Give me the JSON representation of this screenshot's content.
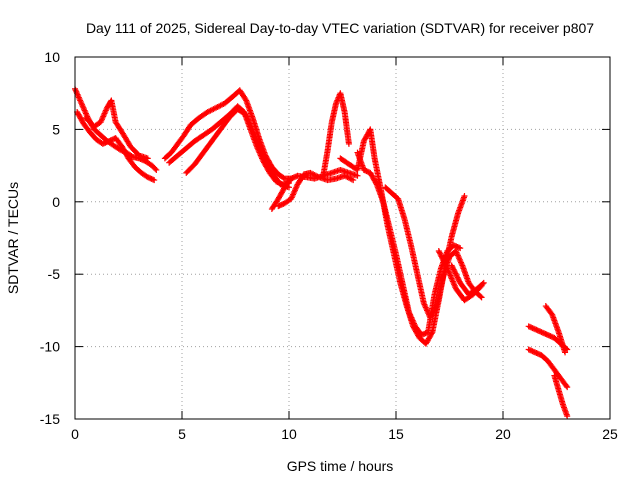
{
  "chart_data": {
    "type": "scatter",
    "title": "Day 111 of 2025, Sidereal Day-to-day VTEC variation (SDTVAR) for receiver p807",
    "xlabel": "GPS time / hours",
    "ylabel": "SDTVAR / TECUs",
    "xlim": [
      0,
      25
    ],
    "ylim": [
      -15,
      10
    ],
    "xticks": [
      0,
      5,
      10,
      15,
      20,
      25
    ],
    "yticks": [
      -15,
      -10,
      -5,
      0,
      5,
      10
    ],
    "xtick_labels": [
      "0",
      "5",
      "10",
      "15",
      "20",
      "25"
    ],
    "ytick_labels": [
      "-15",
      "-10",
      "-5",
      "0",
      "5",
      "10"
    ],
    "grid": true,
    "marker": "plus",
    "color": "#ff0000",
    "series": [
      {
        "x": [
          0.0,
          0.3,
          0.6,
          0.9,
          1.2,
          1.5,
          1.8,
          2.1,
          2.4,
          2.7,
          3.0,
          3.3,
          3.6,
          3.8
        ],
        "y": [
          7.8,
          6.8,
          5.8,
          5.0,
          4.6,
          4.2,
          3.9,
          3.6,
          3.4,
          3.1,
          3.0,
          2.8,
          2.5,
          2.2
        ]
      },
      {
        "x": [
          0.1,
          0.4,
          0.7,
          1.0,
          1.3,
          1.6,
          1.9,
          2.2,
          2.5,
          2.8,
          3.1,
          3.4,
          3.7
        ],
        "y": [
          6.2,
          5.4,
          4.8,
          4.3,
          4.0,
          4.2,
          4.4,
          3.8,
          3.0,
          2.4,
          2.0,
          1.7,
          1.5
        ]
      },
      {
        "x": [
          0.5,
          0.9,
          1.2,
          1.5,
          1.7,
          1.9,
          2.2,
          2.6,
          3.0,
          3.4
        ],
        "y": [
          5.8,
          5.2,
          5.5,
          6.5,
          7.0,
          5.5,
          4.8,
          3.8,
          3.2,
          3.0
        ]
      },
      {
        "x": [
          4.2,
          4.5,
          4.8,
          5.1,
          5.4,
          5.8,
          6.2,
          6.6,
          7.0,
          7.4,
          7.7,
          8.0,
          8.3,
          8.6,
          8.9,
          9.2,
          9.5,
          9.8,
          10.1
        ],
        "y": [
          3.0,
          3.4,
          4.0,
          4.6,
          5.3,
          5.8,
          6.2,
          6.5,
          6.8,
          7.3,
          7.7,
          7.0,
          5.8,
          4.4,
          3.2,
          2.4,
          1.9,
          1.6,
          1.6
        ]
      },
      {
        "x": [
          4.4,
          4.8,
          5.2,
          5.6,
          6.0,
          6.4,
          6.8,
          7.2,
          7.6,
          7.9,
          8.2,
          8.5,
          8.8,
          9.1,
          9.4,
          9.7,
          10.0
        ],
        "y": [
          2.7,
          3.2,
          3.7,
          4.2,
          4.6,
          5.0,
          5.5,
          6.0,
          6.6,
          6.2,
          5.0,
          3.8,
          2.8,
          2.0,
          1.4,
          1.2,
          1.3
        ]
      },
      {
        "x": [
          5.2,
          5.6,
          6.0,
          6.4,
          6.8,
          7.2,
          7.6,
          8.0,
          8.4,
          8.8,
          9.2,
          9.6,
          10.0
        ],
        "y": [
          2.0,
          2.6,
          3.4,
          4.2,
          5.0,
          5.8,
          6.4,
          6.0,
          4.6,
          3.2,
          2.0,
          1.2,
          1.0
        ]
      },
      {
        "x": [
          9.2,
          9.5,
          9.8,
          10.1,
          10.4,
          10.8,
          11.2,
          11.6,
          12.0,
          12.4,
          12.8,
          13.2
        ],
        "y": [
          -0.5,
          0.2,
          1.0,
          1.6,
          1.8,
          1.7,
          1.6,
          1.8,
          2.0,
          2.2,
          2.0,
          1.8
        ]
      },
      {
        "x": [
          9.5,
          9.8,
          10.1,
          10.4,
          10.7,
          11.0,
          11.4,
          11.8,
          12.2,
          12.6,
          13.0
        ],
        "y": [
          -0.3,
          -0.1,
          0.2,
          1.2,
          1.9,
          2.0,
          1.7,
          1.5,
          1.6,
          1.8,
          1.5
        ]
      },
      {
        "x": [
          11.6,
          11.8,
          12.0,
          12.2,
          12.4,
          12.6,
          12.8
        ],
        "y": [
          1.8,
          3.5,
          5.5,
          6.8,
          7.5,
          6.2,
          4.0
        ]
      },
      {
        "x": [
          12.4,
          12.8,
          13.2,
          13.5,
          13.8,
          14.0,
          14.3,
          14.6,
          14.9,
          15.2,
          15.5,
          15.8,
          16.1,
          16.4,
          16.7,
          17.0,
          17.3,
          17.6,
          17.9,
          18.2
        ],
        "y": [
          3.0,
          2.6,
          2.2,
          4.2,
          5.0,
          3.0,
          0.8,
          -1.6,
          -3.6,
          -5.6,
          -7.2,
          -8.6,
          -9.4,
          -9.8,
          -9.0,
          -6.8,
          -4.4,
          -2.4,
          -0.8,
          0.4
        ]
      },
      {
        "x": [
          13.2,
          13.5,
          13.8,
          14.1,
          14.4,
          14.7,
          15.0,
          15.3,
          15.6,
          15.9,
          16.2,
          16.5,
          16.8,
          17.1,
          17.4,
          17.7,
          18.0
        ],
        "y": [
          3.4,
          2.2,
          2.0,
          1.2,
          0.0,
          -1.8,
          -3.6,
          -5.6,
          -7.6,
          -8.6,
          -9.2,
          -9.0,
          -6.4,
          -4.6,
          -3.4,
          -3.0,
          -3.2
        ]
      },
      {
        "x": [
          14.5,
          14.8,
          15.1,
          15.4,
          15.7,
          16.0,
          16.3,
          16.6,
          16.9,
          17.2,
          17.5,
          17.8,
          18.1,
          18.4,
          18.7,
          19.0
        ],
        "y": [
          1.0,
          0.6,
          0.2,
          -1.2,
          -3.0,
          -5.0,
          -7.0,
          -8.0,
          -7.2,
          -5.2,
          -3.8,
          -3.4,
          -4.4,
          -5.6,
          -6.2,
          -6.6
        ]
      },
      {
        "x": [
          17.0,
          17.4,
          17.8,
          18.2,
          18.6,
          19.0
        ],
        "y": [
          -3.4,
          -4.6,
          -6.0,
          -6.8,
          -6.4,
          -5.8
        ]
      },
      {
        "x": [
          17.6,
          18.0,
          18.4,
          18.8,
          19.1
        ],
        "y": [
          -4.4,
          -5.6,
          -6.4,
          -6.0,
          -5.6
        ]
      },
      {
        "x": [
          21.2,
          21.5,
          21.8,
          22.1,
          22.4,
          22.7,
          23.0
        ],
        "y": [
          -8.6,
          -8.8,
          -9.0,
          -9.2,
          -9.4,
          -9.8,
          -10.2
        ]
      },
      {
        "x": [
          21.2,
          21.5,
          21.8,
          22.1,
          22.4,
          22.7,
          23.0
        ],
        "y": [
          -10.2,
          -10.4,
          -10.6,
          -11.0,
          -11.6,
          -12.2,
          -12.8
        ]
      },
      {
        "x": [
          22.0,
          22.3,
          22.6,
          22.9
        ],
        "y": [
          -7.2,
          -7.8,
          -9.0,
          -10.4
        ]
      },
      {
        "x": [
          22.4,
          22.6,
          22.8,
          23.0
        ],
        "y": [
          -12.0,
          -13.0,
          -14.0,
          -14.8
        ]
      }
    ]
  }
}
